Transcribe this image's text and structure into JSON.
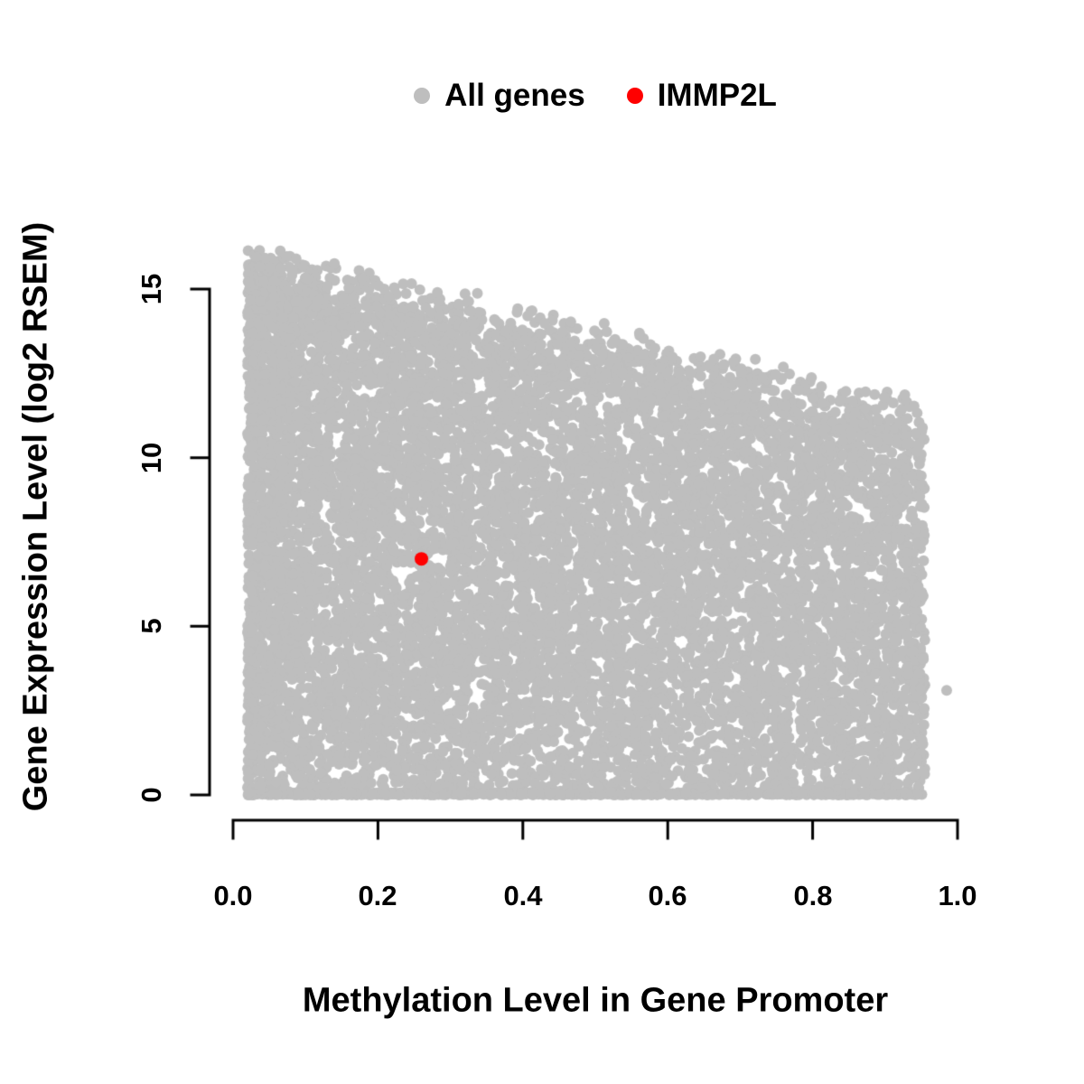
{
  "chart_data": {
    "type": "scatter",
    "title": "",
    "xlabel": "Methylation Level in Gene Promoter",
    "ylabel": "Gene Expression Level (log2 RSEM)",
    "xlim": [
      0.0,
      1.0
    ],
    "ylim": [
      0,
      15
    ],
    "grid": false,
    "x_ticks": [
      0.0,
      0.2,
      0.4,
      0.6,
      0.8,
      1.0
    ],
    "x_tick_labels": [
      "0.0",
      "0.2",
      "0.4",
      "0.6",
      "0.8",
      "1.0"
    ],
    "y_ticks": [
      0,
      5,
      10,
      15
    ],
    "y_tick_labels": [
      "0",
      "5",
      "10",
      "15"
    ],
    "legend": {
      "position": "top-center",
      "items": [
        {
          "label": "All genes",
          "color": "#bebebe"
        },
        {
          "label": "IMMP2L",
          "color": "#ff0000"
        }
      ]
    },
    "series": [
      {
        "name": "All genes",
        "render": "density-cloud",
        "color": "#bebebe",
        "n_points": 11000,
        "x_range": [
          0.02,
          0.955
        ],
        "y_range": [
          0,
          16.6
        ],
        "upper_envelope_y_at_x0": 16.6,
        "upper_envelope_y_at_x1": 11.8,
        "description": "Dense opaque cloud of gray points filling the region from methylation 0.02-0.955 and expression 0 up to an upper boundary that declines from ~16.6 at low methylation to ~11.8 at high methylation; density highest at low methylation and along expression = 0.",
        "outlier_points": [
          {
            "x": 0.985,
            "y": 3.1
          }
        ]
      },
      {
        "name": "IMMP2L",
        "render": "points",
        "color": "#ff0000",
        "points": [
          {
            "x": 0.26,
            "y": 7.0
          }
        ]
      }
    ]
  }
}
